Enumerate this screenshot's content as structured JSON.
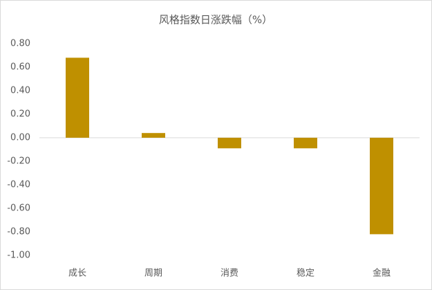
{
  "chart_data": {
    "type": "bar",
    "title": "风格指数日涨跌幅（%）",
    "categories": [
      "成长",
      "周期",
      "消费",
      "稳定",
      "金融"
    ],
    "values": [
      0.68,
      0.04,
      -0.09,
      -0.09,
      -0.82
    ],
    "color": "#bf9000",
    "ylim": [
      -1.0,
      0.8
    ],
    "yticks": [
      {
        "value": 0.8,
        "label": "0.80"
      },
      {
        "value": 0.6,
        "label": "0.60"
      },
      {
        "value": 0.4,
        "label": "0.40"
      },
      {
        "value": 0.2,
        "label": "0.20"
      },
      {
        "value": 0,
        "label": "0.00"
      },
      {
        "value": -0.2,
        "label": "-0.20"
      },
      {
        "value": -0.4,
        "label": "-0.40"
      },
      {
        "value": -0.6,
        "label": "-0.60"
      },
      {
        "value": -0.8,
        "label": "-0.80"
      },
      {
        "value": -1.0,
        "label": "-1.00"
      }
    ],
    "grid": false
  }
}
